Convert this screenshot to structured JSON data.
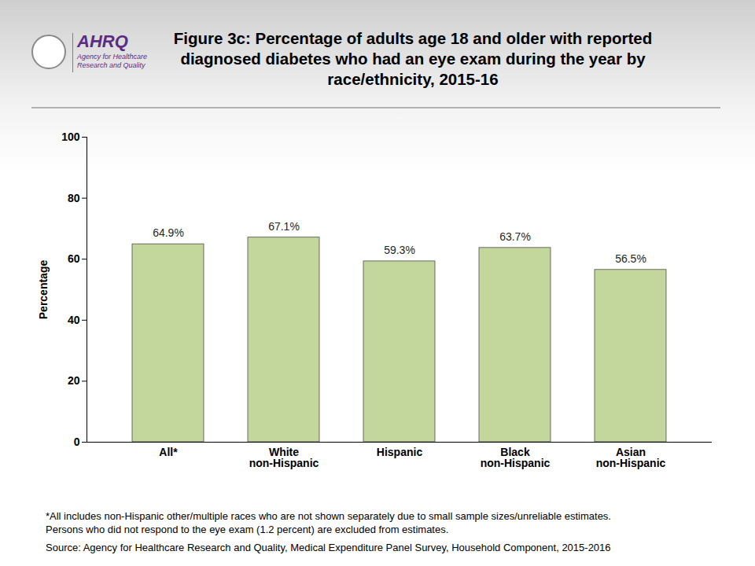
{
  "chart_data": {
    "type": "bar",
    "title": "Figure 3c: Percentage of adults age 18 and older with reported diagnosed diabetes who had an eye exam during the year by race/ethnicity, 2015-16",
    "categories": [
      "All*",
      "White non-Hispanic",
      "Hispanic",
      "Black non-Hispanic",
      "Asian non-Hispanic"
    ],
    "values": [
      64.9,
      67.1,
      59.3,
      63.7,
      56.5
    ],
    "value_labels": [
      "64.9%",
      "67.1%",
      "59.3%",
      "63.7%",
      "56.5%"
    ],
    "data_labels": true,
    "color": "#c3d69b",
    "y_label": "Percentage",
    "ylim": [
      0,
      100
    ],
    "yticks": [
      0,
      20,
      40,
      60,
      80,
      100
    ],
    "grid": false,
    "notes": [
      "*All includes non-Hispanic other/multiple races who are not shown separately due to small sample sizes/unreliable estimates.",
      "Persons who did not respond to the eye exam (1.2 percent) are excluded from estimates."
    ],
    "source": "Source: Agency for Healthcare Research and Quality, Medical Expenditure Panel Survey, Household Component, 2015-2016",
    "logo": {
      "name": "AHRQ",
      "text": "Agency for Healthcare Research and Quality"
    }
  }
}
